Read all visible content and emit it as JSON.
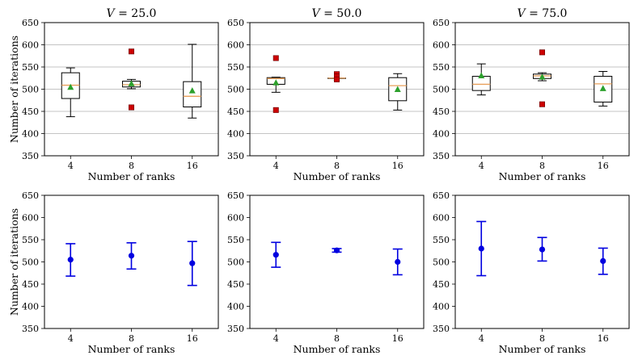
{
  "colors": {
    "median": "#e8a05b",
    "mean_marker": "#2ca02c",
    "outlier": "#cc0000",
    "errorbar": "#0000e0",
    "grid": "#b0b0b0"
  },
  "chart_data": [
    {
      "type": "box",
      "title": "V = 25.0",
      "title_var": "V",
      "title_value": "25.0",
      "xlabel": "Number of ranks",
      "ylabel": "Number of iterations",
      "categories": [
        "4",
        "8",
        "16"
      ],
      "ylim": [
        350,
        650
      ],
      "yticks": [
        "350",
        "400",
        "450",
        "500",
        "550",
        "600",
        "650"
      ],
      "grid": "horizontal",
      "boxes": [
        {
          "q1": 479,
          "median": 509,
          "q3": 537,
          "whisker_low": 438,
          "whisker_high": 548,
          "mean": 505,
          "outliers": []
        },
        {
          "q1": 505,
          "median": 510,
          "q3": 518,
          "whisker_low": 501,
          "whisker_high": 522,
          "mean": 513,
          "outliers": [
            585,
            459
          ]
        },
        {
          "q1": 460,
          "median": 484,
          "q3": 517,
          "whisker_low": 435,
          "whisker_high": 601,
          "mean": 497,
          "outliers": []
        }
      ]
    },
    {
      "type": "box",
      "title": "V = 50.0",
      "title_var": "V",
      "title_value": "50.0",
      "xlabel": "Number of ranks",
      "ylabel": "",
      "categories": [
        "4",
        "8",
        "16"
      ],
      "ylim": [
        350,
        650
      ],
      "yticks": [
        "350",
        "400",
        "450",
        "500",
        "550",
        "600",
        "650"
      ],
      "grid": "horizontal",
      "boxes": [
        {
          "q1": 511,
          "median": 524,
          "q3": 526,
          "whisker_low": 493,
          "whisker_high": 527,
          "mean": 515,
          "outliers": [
            570,
            453
          ]
        },
        {
          "q1": 525,
          "median": 525,
          "q3": 525,
          "whisker_low": 525,
          "whisker_high": 525,
          "mean": 526,
          "outliers": [
            534,
            529,
            522
          ]
        },
        {
          "q1": 474,
          "median": 508,
          "q3": 526,
          "whisker_low": 453,
          "whisker_high": 535,
          "mean": 500,
          "outliers": []
        }
      ]
    },
    {
      "type": "box",
      "title": "V = 75.0",
      "title_var": "V",
      "title_value": "75.0",
      "xlabel": "Number of ranks",
      "ylabel": "",
      "categories": [
        "4",
        "8",
        "16"
      ],
      "ylim": [
        350,
        650
      ],
      "yticks": [
        "350",
        "400",
        "450",
        "500",
        "550",
        "600",
        "650"
      ],
      "grid": "horizontal",
      "boxes": [
        {
          "q1": 497,
          "median": 511,
          "q3": 529,
          "whisker_low": 487,
          "whisker_high": 557,
          "mean": 531,
          "outliers": []
        },
        {
          "q1": 524,
          "median": 530,
          "q3": 534,
          "whisker_low": 519,
          "whisker_high": 537,
          "mean": 528,
          "outliers": [
            583,
            466
          ]
        },
        {
          "q1": 471,
          "median": 512,
          "q3": 529,
          "whisker_low": 462,
          "whisker_high": 540,
          "mean": 502,
          "outliers": []
        }
      ]
    },
    {
      "type": "errorbar",
      "title": "",
      "xlabel": "Number of ranks",
      "ylabel": "Number of iterations",
      "categories": [
        "4",
        "8",
        "16"
      ],
      "ylim": [
        350,
        650
      ],
      "yticks": [
        "350",
        "400",
        "450",
        "500",
        "550",
        "600",
        "650"
      ],
      "grid": "none",
      "means": [
        505,
        514,
        497
      ],
      "lower": [
        468,
        484,
        447
      ],
      "upper": [
        541,
        543,
        546
      ]
    },
    {
      "type": "errorbar",
      "title": "",
      "xlabel": "Number of ranks",
      "ylabel": "",
      "categories": [
        "4",
        "8",
        "16"
      ],
      "ylim": [
        350,
        650
      ],
      "yticks": [
        "350",
        "400",
        "450",
        "500",
        "550",
        "600",
        "650"
      ],
      "grid": "none",
      "means": [
        516,
        526,
        500
      ],
      "lower": [
        488,
        522,
        471
      ],
      "upper": [
        544,
        530,
        529
      ]
    },
    {
      "type": "errorbar",
      "title": "",
      "xlabel": "Number of ranks",
      "ylabel": "",
      "categories": [
        "4",
        "8",
        "16"
      ],
      "ylim": [
        350,
        650
      ],
      "yticks": [
        "350",
        "400",
        "450",
        "500",
        "550",
        "600",
        "650"
      ],
      "grid": "none",
      "means": [
        530,
        528,
        502
      ],
      "lower": [
        469,
        502,
        472
      ],
      "upper": [
        591,
        555,
        531
      ]
    }
  ]
}
